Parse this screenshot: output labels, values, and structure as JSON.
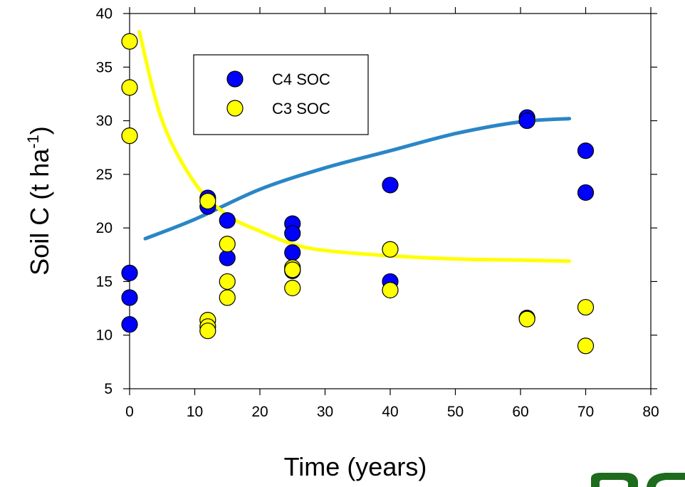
{
  "chart_data": {
    "type": "scatter",
    "xlabel": "Time (years)",
    "ylabel_main": "Soil C (t ha",
    "ylabel_sup": "-1",
    "ylabel_close": ")",
    "xlim": [
      0,
      80
    ],
    "ylim": [
      5,
      40
    ],
    "xticks": [
      0,
      10,
      20,
      30,
      40,
      50,
      60,
      70,
      80
    ],
    "yticks": [
      5,
      10,
      15,
      20,
      25,
      30,
      35,
      40
    ],
    "grid": false,
    "legend": {
      "position": "top-left-inset"
    },
    "series": [
      {
        "name": "C4 SOC",
        "color": "#0000ff",
        "points": [
          [
            0,
            15.8
          ],
          [
            0,
            13.5
          ],
          [
            0,
            11.0
          ],
          [
            12,
            22.8
          ],
          [
            12,
            22.0
          ],
          [
            15,
            20.7
          ],
          [
            15,
            17.2
          ],
          [
            25,
            20.4
          ],
          [
            25,
            19.5
          ],
          [
            25,
            17.7
          ],
          [
            25,
            16.0
          ],
          [
            40,
            24.0
          ],
          [
            40,
            15.0
          ],
          [
            61,
            30.3
          ],
          [
            61,
            30.0
          ],
          [
            61,
            11.6
          ],
          [
            70,
            27.2
          ],
          [
            70,
            23.3
          ]
        ]
      },
      {
        "name": "C3 SOC",
        "color": "#ffff00",
        "points": [
          [
            0,
            37.4
          ],
          [
            0,
            33.1
          ],
          [
            0,
            28.6
          ],
          [
            12,
            22.5
          ],
          [
            12,
            11.4
          ],
          [
            12,
            10.8
          ],
          [
            12,
            10.4
          ],
          [
            15,
            18.5
          ],
          [
            15,
            15.0
          ],
          [
            15,
            13.5
          ],
          [
            25,
            16.3
          ],
          [
            25,
            16.1
          ],
          [
            25,
            14.4
          ],
          [
            40,
            18.0
          ],
          [
            40,
            14.2
          ],
          [
            61,
            11.5
          ],
          [
            70,
            12.6
          ],
          [
            70,
            9.0
          ]
        ]
      }
    ],
    "fit_lines": [
      {
        "series": "C4 SOC",
        "color": "#2a86c6",
        "points": [
          [
            2.4,
            19.0
          ],
          [
            10,
            20.8
          ],
          [
            20,
            23.6
          ],
          [
            30,
            25.6
          ],
          [
            40,
            27.2
          ],
          [
            50,
            28.8
          ],
          [
            60,
            29.9
          ],
          [
            67.5,
            30.2
          ]
        ]
      },
      {
        "series": "C3 SOC",
        "color": "#ffff00",
        "points": [
          [
            1.5,
            38.3
          ],
          [
            5,
            30.0
          ],
          [
            10,
            24.2
          ],
          [
            15,
            21.2
          ],
          [
            20,
            19.7
          ],
          [
            25,
            18.5
          ],
          [
            30,
            17.9
          ],
          [
            40,
            17.4
          ],
          [
            50,
            17.1
          ],
          [
            60,
            17.0
          ],
          [
            67.5,
            16.9
          ]
        ]
      }
    ]
  }
}
